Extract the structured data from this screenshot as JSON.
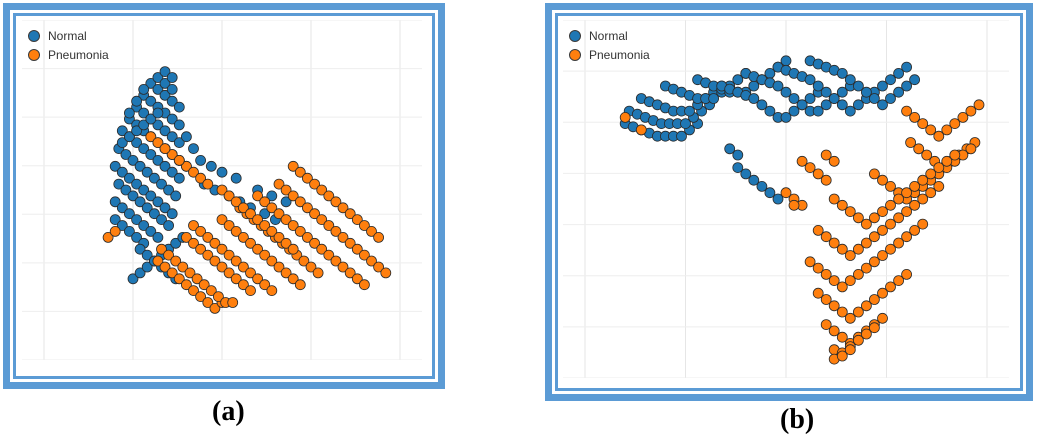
{
  "chart_data": [
    {
      "type": "scatter",
      "title": "",
      "caption": "(a)",
      "xlabel": "",
      "ylabel": "",
      "xlim": [
        0,
        100
      ],
      "ylim": [
        0,
        100
      ],
      "legend_position": "top-left",
      "grid": true,
      "series": [
        {
          "name": "Normal",
          "color": "#1f77b4",
          "x": [
            20,
            22,
            24,
            26,
            28,
            20,
            22,
            24,
            26,
            28,
            30,
            32,
            21,
            23,
            25,
            27,
            29,
            31,
            33,
            35,
            20,
            22,
            24,
            26,
            28,
            30,
            32,
            34,
            36,
            21,
            23,
            25,
            27,
            29,
            31,
            33,
            35,
            37,
            22,
            24,
            26,
            28,
            30,
            32,
            34,
            36,
            38,
            24,
            26,
            28,
            30,
            32,
            34,
            36,
            38,
            40,
            26,
            28,
            30,
            32,
            34,
            36,
            38,
            28,
            30,
            32,
            34,
            36,
            38,
            30,
            32,
            34,
            36,
            38,
            32,
            34,
            36,
            34,
            36,
            27,
            29,
            31,
            33,
            35,
            37,
            25,
            27,
            29,
            31,
            33,
            35,
            37,
            39,
            24,
            26,
            28,
            22,
            24,
            26,
            28,
            30,
            32,
            45,
            48,
            52,
            55,
            58,
            62,
            65,
            50,
            54,
            60,
            64,
            68,
            44,
            47,
            42,
            40
          ],
          "y": [
            40,
            38,
            36,
            34,
            32,
            46,
            44,
            42,
            40,
            38,
            36,
            34,
            52,
            50,
            48,
            46,
            44,
            42,
            40,
            38,
            58,
            56,
            54,
            52,
            50,
            48,
            46,
            44,
            42,
            64,
            62,
            60,
            58,
            56,
            54,
            52,
            50,
            48,
            70,
            68,
            66,
            64,
            62,
            60,
            58,
            56,
            54,
            74,
            72,
            70,
            68,
            66,
            64,
            62,
            60,
            58,
            78,
            76,
            74,
            72,
            70,
            68,
            66,
            82,
            80,
            78,
            76,
            74,
            72,
            86,
            84,
            82,
            80,
            78,
            88,
            86,
            84,
            90,
            88,
            30,
            28,
            26,
            24,
            22,
            20,
            20,
            22,
            24,
            26,
            28,
            30,
            32,
            34,
            76,
            80,
            84,
            66,
            68,
            70,
            72,
            74,
            76,
            52,
            50,
            48,
            46,
            44,
            42,
            40,
            56,
            54,
            50,
            48,
            46,
            60,
            58,
            64,
            68
          ]
        },
        {
          "name": "Pneumonia",
          "color": "#ff7f0e",
          "x": [
            32,
            34,
            36,
            38,
            40,
            42,
            44,
            46,
            48,
            50,
            33,
            35,
            37,
            39,
            41,
            43,
            45,
            47,
            49,
            51,
            53,
            40,
            42,
            44,
            46,
            48,
            50,
            52,
            54,
            56,
            58,
            42,
            44,
            46,
            48,
            50,
            52,
            54,
            56,
            58,
            60,
            62,
            64,
            50,
            52,
            54,
            56,
            58,
            60,
            62,
            64,
            66,
            68,
            70,
            72,
            55,
            57,
            59,
            61,
            63,
            65,
            67,
            69,
            71,
            73,
            75,
            77,
            60,
            62,
            64,
            66,
            68,
            70,
            72,
            74,
            76,
            78,
            80,
            82,
            84,
            86,
            88,
            90,
            66,
            68,
            70,
            72,
            74,
            76,
            78,
            80,
            82,
            84,
            86,
            88,
            90,
            92,
            94,
            96,
            70,
            72,
            74,
            76,
            78,
            80,
            82,
            84,
            86,
            88,
            90,
            92,
            94,
            50,
            52,
            54,
            56,
            58,
            60,
            62,
            64,
            66,
            68,
            70,
            38,
            40,
            42,
            44,
            46,
            34,
            36,
            38,
            30,
            32,
            34,
            18,
            20
          ],
          "y": [
            26,
            24,
            22,
            20,
            18,
            16,
            14,
            12,
            10,
            12,
            30,
            28,
            26,
            24,
            22,
            20,
            18,
            16,
            14,
            12,
            12,
            34,
            32,
            30,
            28,
            26,
            24,
            22,
            20,
            18,
            16,
            38,
            36,
            34,
            32,
            30,
            28,
            26,
            24,
            22,
            20,
            18,
            16,
            40,
            38,
            36,
            34,
            32,
            30,
            28,
            26,
            24,
            22,
            20,
            18,
            44,
            42,
            40,
            38,
            36,
            34,
            32,
            30,
            28,
            26,
            24,
            22,
            48,
            46,
            44,
            42,
            40,
            38,
            36,
            34,
            32,
            30,
            28,
            26,
            24,
            22,
            20,
            18,
            52,
            50,
            48,
            46,
            44,
            42,
            40,
            38,
            36,
            34,
            32,
            30,
            28,
            26,
            24,
            22,
            58,
            56,
            54,
            52,
            50,
            48,
            46,
            44,
            42,
            40,
            38,
            36,
            34,
            50,
            48,
            46,
            44,
            42,
            40,
            38,
            36,
            34,
            32,
            30,
            60,
            58,
            56,
            54,
            52,
            64,
            62,
            60,
            68,
            66,
            64,
            34,
            36
          ]
        }
      ]
    },
    {
      "type": "scatter",
      "title": "",
      "caption": "(b)",
      "xlabel": "",
      "ylabel": "",
      "xlim": [
        0,
        100
      ],
      "ylim": [
        0,
        100
      ],
      "legend_position": "top-left",
      "grid": true,
      "series": [
        {
          "name": "Normal",
          "color": "#1f77b4",
          "x": [
            10,
            12,
            14,
            16,
            18,
            20,
            22,
            24,
            26,
            28,
            11,
            13,
            15,
            17,
            19,
            21,
            23,
            25,
            27,
            29,
            31,
            14,
            16,
            18,
            20,
            22,
            24,
            26,
            28,
            30,
            32,
            34,
            20,
            22,
            24,
            26,
            28,
            30,
            32,
            34,
            36,
            38,
            40,
            28,
            30,
            32,
            34,
            36,
            38,
            40,
            42,
            44,
            46,
            48,
            50,
            34,
            36,
            38,
            40,
            42,
            44,
            46,
            48,
            50,
            52,
            54,
            56,
            58,
            40,
            42,
            44,
            46,
            48,
            50,
            52,
            54,
            56,
            58,
            60,
            62,
            64,
            66,
            48,
            50,
            52,
            54,
            56,
            58,
            60,
            62,
            64,
            66,
            68,
            70,
            72,
            74,
            76,
            78,
            80,
            56,
            58,
            60,
            62,
            64,
            66,
            68,
            70,
            72,
            74,
            76,
            78,
            80,
            82,
            38,
            40,
            42,
            44,
            46,
            48,
            36,
            38
          ],
          "y": [
            74,
            73,
            72,
            71,
            70,
            70,
            70,
            70,
            72,
            74,
            78,
            77,
            76,
            75,
            74,
            74,
            74,
            74,
            76,
            78,
            80,
            82,
            81,
            80,
            79,
            78,
            78,
            78,
            80,
            82,
            84,
            86,
            86,
            85,
            84,
            83,
            82,
            82,
            82,
            84,
            86,
            88,
            90,
            88,
            87,
            86,
            85,
            84,
            84,
            84,
            86,
            88,
            90,
            92,
            94,
            86,
            85,
            84,
            83,
            82,
            80,
            78,
            76,
            76,
            78,
            80,
            82,
            84,
            90,
            89,
            88,
            87,
            86,
            84,
            82,
            80,
            78,
            78,
            80,
            82,
            84,
            86,
            92,
            91,
            90,
            89,
            88,
            86,
            84,
            82,
            80,
            78,
            80,
            82,
            84,
            86,
            88,
            90,
            92,
            94,
            93,
            92,
            91,
            90,
            88,
            86,
            84,
            82,
            80,
            82,
            84,
            86,
            88,
            60,
            58,
            56,
            54,
            52,
            50,
            66,
            64
          ]
        },
        {
          "name": "Pneumonia",
          "color": "#ff7f0e",
          "x": [
            80,
            82,
            84,
            86,
            88,
            90,
            92,
            94,
            96,
            98,
            81,
            83,
            85,
            87,
            89,
            91,
            93,
            95,
            97,
            72,
            74,
            76,
            78,
            80,
            82,
            84,
            86,
            88,
            90,
            92,
            94,
            96,
            62,
            64,
            66,
            68,
            70,
            72,
            74,
            76,
            78,
            80,
            82,
            84,
            86,
            88,
            90,
            92,
            58,
            60,
            62,
            64,
            66,
            68,
            70,
            72,
            74,
            76,
            78,
            80,
            82,
            84,
            86,
            88,
            56,
            58,
            60,
            62,
            64,
            66,
            68,
            70,
            72,
            74,
            76,
            78,
            80,
            82,
            84,
            58,
            60,
            62,
            64,
            66,
            68,
            70,
            72,
            74,
            76,
            78,
            80,
            60,
            62,
            64,
            66,
            68,
            70,
            72,
            74,
            62,
            64,
            66,
            68,
            70,
            72,
            62,
            64,
            66,
            60,
            62,
            54,
            56,
            58,
            60,
            52,
            54,
            10,
            14,
            50,
            52
          ],
          "y": [
            78,
            76,
            74,
            72,
            70,
            72,
            74,
            76,
            78,
            80,
            68,
            66,
            64,
            62,
            60,
            62,
            64,
            66,
            68,
            58,
            56,
            54,
            52,
            50,
            52,
            54,
            56,
            58,
            60,
            62,
            64,
            66,
            50,
            48,
            46,
            44,
            42,
            44,
            46,
            48,
            50,
            52,
            54,
            56,
            58,
            60,
            62,
            64,
            40,
            38,
            36,
            34,
            32,
            34,
            36,
            38,
            40,
            42,
            44,
            46,
            48,
            50,
            52,
            54,
            30,
            28,
            26,
            24,
            22,
            24,
            26,
            28,
            30,
            32,
            34,
            36,
            38,
            40,
            42,
            20,
            18,
            16,
            14,
            12,
            14,
            16,
            18,
            20,
            22,
            24,
            26,
            10,
            8,
            6,
            4,
            6,
            8,
            10,
            12,
            2,
            1,
            3,
            5,
            7,
            9,
            -1,
            0,
            2,
            64,
            62,
            62,
            60,
            58,
            56,
            50,
            48,
            76,
            72,
            52,
            48
          ]
        }
      ]
    }
  ]
}
